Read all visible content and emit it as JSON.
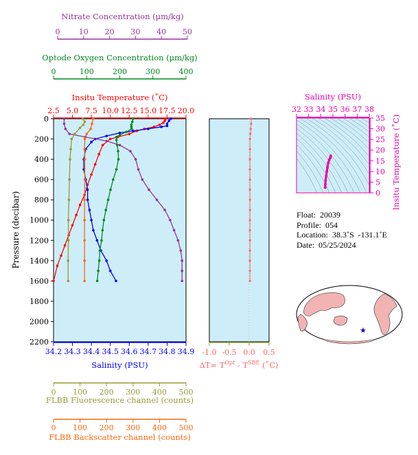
{
  "info": {
    "float": "Float:  20039",
    "profile": "Profile:  054",
    "location": "Location:  38.3˚S  -131.1˚E",
    "date": "Date:  05/25/2024"
  },
  "chart_data": [
    {
      "type": "line",
      "name": "main-profile",
      "ylabel": "Pressure (decibar)",
      "ylim": [
        2200,
        0
      ],
      "yticks": [
        0,
        200,
        400,
        600,
        800,
        1000,
        1200,
        1400,
        1600,
        1800,
        2000,
        2200
      ],
      "axes": {
        "temperature": {
          "label": "Insitu Temperature (˚C)",
          "range": [
            2.5,
            20.0
          ],
          "ticks": [
            "2.5",
            "5.0",
            "7.5",
            "10.0",
            "12.5",
            "15.0",
            "17.5",
            "20.0"
          ],
          "color": "#ff0000"
        },
        "salinity": {
          "label": "Salinity (PSU)",
          "range": [
            34.2,
            34.9
          ],
          "ticks": [
            "34.2",
            "34.3",
            "34.4",
            "34.5",
            "34.6",
            "34.7",
            "34.8",
            "34.9"
          ],
          "color": "#0000ff"
        },
        "nitrate": {
          "label": "Nitrate Concentration (μm/kg)",
          "range": [
            0,
            50
          ],
          "ticks": [
            "0",
            "10",
            "20",
            "30",
            "40",
            "50"
          ],
          "color": "#993399"
        },
        "oxygen": {
          "label": "Optode Oxygen Concentration (μm/kg)",
          "range": [
            0,
            400
          ],
          "ticks": [
            "0",
            "100",
            "200",
            "300",
            "400"
          ],
          "color": "#008822"
        },
        "fluorescence": {
          "label": "FLBB Fluorescence channel (counts)",
          "range": [
            0,
            500
          ],
          "ticks": [
            "0",
            "100",
            "200",
            "300",
            "400",
            "500"
          ],
          "color": "#999933"
        },
        "backscatter": {
          "label": "FLBB Backscatter channel (counts)",
          "range": [
            0,
            500
          ],
          "ticks": [
            "0",
            "100",
            "200",
            "300",
            "400",
            "500"
          ],
          "color": "#ff6611"
        }
      },
      "series": [
        {
          "axis": "temperature",
          "color": "#ff0000",
          "points": [
            [
              17.3,
              0
            ],
            [
              17.2,
              20
            ],
            [
              17.0,
              40
            ],
            [
              16.5,
              60
            ],
            [
              15.8,
              80
            ],
            [
              14.5,
              100
            ],
            [
              13.5,
              120
            ],
            [
              12.5,
              150
            ],
            [
              11.0,
              180
            ],
            [
              10.0,
              200
            ],
            [
              9.0,
              260
            ],
            [
              8.5,
              350
            ],
            [
              8.0,
              450
            ],
            [
              7.5,
              550
            ],
            [
              7.0,
              650
            ],
            [
              6.6,
              750
            ],
            [
              6.0,
              850
            ],
            [
              5.5,
              950
            ],
            [
              5.0,
              1050
            ],
            [
              4.5,
              1150
            ],
            [
              4.0,
              1250
            ],
            [
              3.5,
              1350
            ],
            [
              3.0,
              1450
            ],
            [
              2.5,
              1600
            ]
          ]
        },
        {
          "axis": "salinity",
          "color": "#0000ff",
          "points": [
            [
              34.82,
              0
            ],
            [
              34.81,
              20
            ],
            [
              34.8,
              50
            ],
            [
              34.8,
              70
            ],
            [
              34.77,
              80
            ],
            [
              34.7,
              100
            ],
            [
              34.62,
              120
            ],
            [
              34.55,
              140
            ],
            [
              34.48,
              170
            ],
            [
              34.42,
              200
            ],
            [
              34.4,
              230
            ],
            [
              34.37,
              300
            ],
            [
              34.36,
              400
            ],
            [
              34.36,
              500
            ],
            [
              34.37,
              600
            ],
            [
              34.38,
              700
            ],
            [
              34.38,
              800
            ],
            [
              34.39,
              900
            ],
            [
              34.4,
              1000
            ],
            [
              34.41,
              1100
            ],
            [
              34.43,
              1200
            ],
            [
              34.45,
              1300
            ],
            [
              34.48,
              1400
            ],
            [
              34.5,
              1500
            ],
            [
              34.53,
              1600
            ]
          ]
        },
        {
          "axis": "nitrate",
          "color": "#993399",
          "points": [
            [
              4,
              0
            ],
            [
              4,
              50
            ],
            [
              4.5,
              100
            ],
            [
              6,
              150
            ],
            [
              12,
              180
            ],
            [
              20,
              220
            ],
            [
              25,
              260
            ],
            [
              29,
              320
            ],
            [
              31,
              400
            ],
            [
              32,
              500
            ],
            [
              33.5,
              600
            ],
            [
              36,
              700
            ],
            [
              39,
              800
            ],
            [
              42,
              900
            ],
            [
              44,
              1000
            ],
            [
              45.5,
              1100
            ],
            [
              47,
              1200
            ],
            [
              48,
              1300
            ],
            [
              48.5,
              1400
            ],
            [
              48.5,
              1500
            ],
            [
              48.5,
              1600
            ]
          ]
        },
        {
          "axis": "oxygen",
          "color": "#008822",
          "points": [
            [
              240,
              0
            ],
            [
              238,
              30
            ],
            [
              235,
              60
            ],
            [
              235,
              80
            ],
            [
              236,
              100
            ],
            [
              220,
              130
            ],
            [
              200,
              160
            ],
            [
              190,
              180
            ],
            [
              190,
              210
            ],
            [
              192,
              260
            ],
            [
              195,
              320
            ],
            [
              196,
              400
            ],
            [
              190,
              500
            ],
            [
              180,
              600
            ],
            [
              172,
              700
            ],
            [
              165,
              800
            ],
            [
              158,
              900
            ],
            [
              152,
              1000
            ],
            [
              148,
              1100
            ],
            [
              145,
              1200
            ],
            [
              140,
              1300
            ],
            [
              138,
              1400
            ],
            [
              135,
              1500
            ],
            [
              132,
              1600
            ]
          ]
        },
        {
          "axis": "fluorescence",
          "color": "#999933",
          "points": [
            [
              110,
              0
            ],
            [
              118,
              30
            ],
            [
              112,
              60
            ],
            [
              100,
              90
            ],
            [
              80,
              150
            ],
            [
              68,
              200
            ],
            [
              65,
              300
            ],
            [
              62,
              400
            ],
            [
              60,
              600
            ],
            [
              58,
              800
            ],
            [
              56,
              1000
            ],
            [
              56,
              1200
            ],
            [
              55,
              1400
            ],
            [
              55,
              1600
            ]
          ]
        },
        {
          "axis": "backscatter",
          "color": "#ff6611",
          "points": [
            [
              150,
              0
            ],
            [
              145,
              50
            ],
            [
              140,
              100
            ],
            [
              125,
              150
            ],
            [
              118,
              200
            ],
            [
              117,
              300
            ],
            [
              118,
              400
            ],
            [
              118,
              600
            ],
            [
              117,
              800
            ],
            [
              117,
              1000
            ],
            [
              117,
              1200
            ],
            [
              117,
              1400
            ],
            [
              117,
              1600
            ]
          ]
        }
      ]
    },
    {
      "type": "scatter",
      "name": "delta-t",
      "xlabel": "ΔT= T",
      "xlabel_sup1": "Opt",
      "xlabel_mid": " - T",
      "xlabel_sup2": "SBE",
      "xlabel_end": " (˚C)",
      "xlim": [
        -1.0,
        0.5
      ],
      "xticks": [
        "-1.0",
        "-0.5",
        "0.0",
        "0.5"
      ],
      "points": [
        [
          0.05,
          0
        ],
        [
          0.05,
          50
        ],
        [
          0.04,
          100
        ],
        [
          0.03,
          150
        ],
        [
          0.02,
          200
        ],
        [
          0.02,
          300
        ],
        [
          0.02,
          400
        ],
        [
          0.02,
          500
        ],
        [
          0.02,
          600
        ],
        [
          0.02,
          700
        ],
        [
          0.02,
          800
        ],
        [
          0.02,
          900
        ],
        [
          0.02,
          1000
        ],
        [
          0.02,
          1100
        ],
        [
          0.02,
          1200
        ],
        [
          0.02,
          1300
        ],
        [
          0.02,
          1400
        ],
        [
          0.02,
          1500
        ],
        [
          0.02,
          1600
        ]
      ]
    },
    {
      "type": "scatter",
      "name": "ts-diagram",
      "title": "Salinity (PSU)",
      "ylabel": "Insitu Temperature (˚C)",
      "xlim": [
        32,
        38
      ],
      "ylim": [
        0,
        35
      ],
      "xticks": [
        "32",
        "33",
        "34",
        "35",
        "36",
        "37",
        "38"
      ],
      "yticks": [
        "0",
        "5",
        "10",
        "15",
        "20",
        "25",
        "30",
        "35"
      ],
      "color": "#ee00aa",
      "points": [
        [
          34.36,
          2.5
        ],
        [
          34.38,
          4
        ],
        [
          34.4,
          6
        ],
        [
          34.45,
          8
        ],
        [
          34.5,
          10
        ],
        [
          34.55,
          12
        ],
        [
          34.62,
          14
        ],
        [
          34.7,
          15.5
        ],
        [
          34.8,
          16.5
        ],
        [
          34.82,
          17.3
        ]
      ]
    }
  ],
  "map": {
    "label": "world-map",
    "marker_color": "#0000cc"
  }
}
